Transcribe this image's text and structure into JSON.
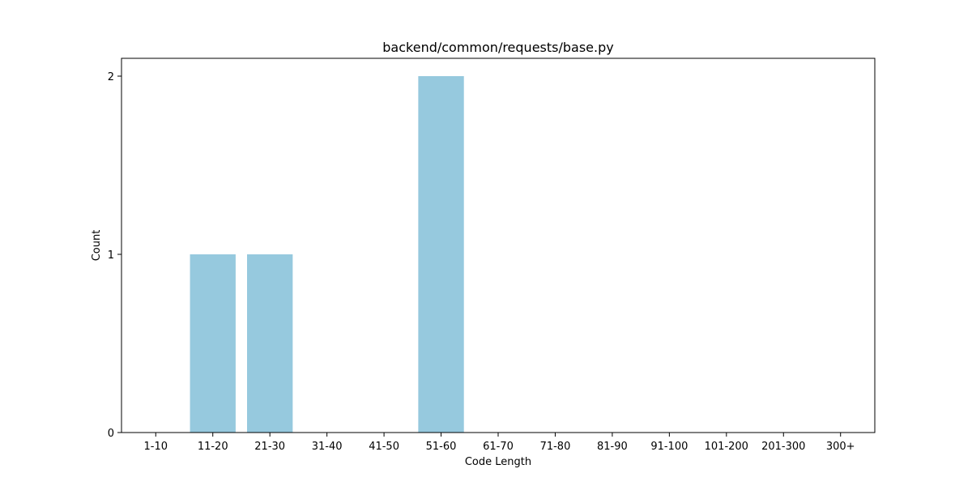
{
  "chart_data": {
    "type": "bar",
    "title": "backend/common/requests/base.py",
    "xlabel": "Code Length",
    "ylabel": "Count",
    "categories": [
      "1-10",
      "11-20",
      "21-30",
      "31-40",
      "41-50",
      "51-60",
      "61-70",
      "71-80",
      "81-90",
      "91-100",
      "101-200",
      "201-300",
      "300+"
    ],
    "values": [
      0,
      1,
      1,
      0,
      0,
      2,
      0,
      0,
      0,
      0,
      0,
      0,
      0
    ],
    "ylim": [
      0,
      2.1
    ],
    "yticks": [
      0,
      1,
      2
    ],
    "bar_color": "#96c9de",
    "grid": false,
    "legend": "none"
  }
}
